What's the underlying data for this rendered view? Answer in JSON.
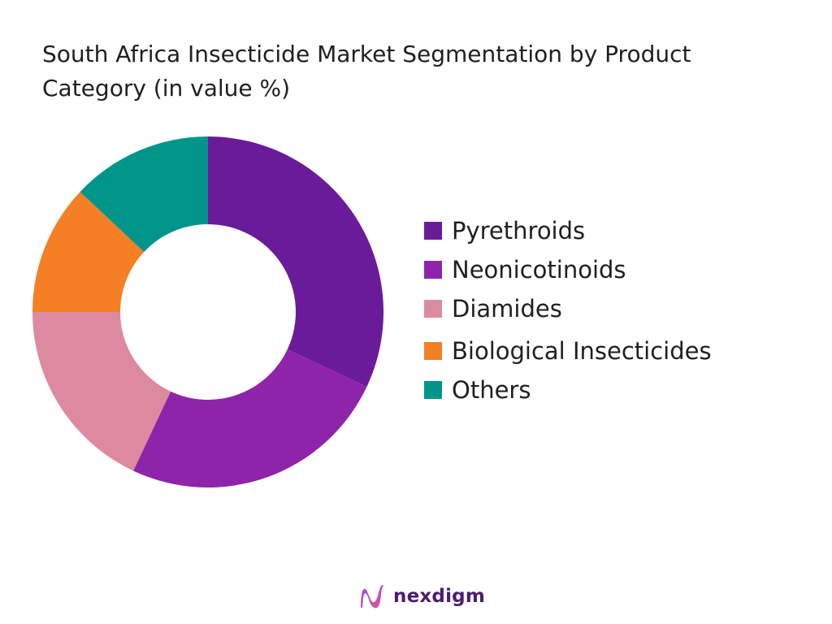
{
  "chart_data": {
    "type": "pie",
    "title": "South Africa Insecticide Market Segmentation by Product Category (in value %)",
    "donut": true,
    "legend_position": "right",
    "categories": [
      "Pyrethroids",
      "Neonicotinoids",
      "Diamides",
      "Biological Insecticides",
      "Others"
    ],
    "values": [
      32,
      25,
      18,
      12,
      13
    ],
    "colors": [
      "#6a1b9a",
      "#8e24aa",
      "#dd8aa0",
      "#f57f25",
      "#00958a"
    ]
  },
  "brand": {
    "name": "nexdigm",
    "logo_icon": "nexdigm-wave-logo-icon",
    "color": "#4a1d6e"
  }
}
